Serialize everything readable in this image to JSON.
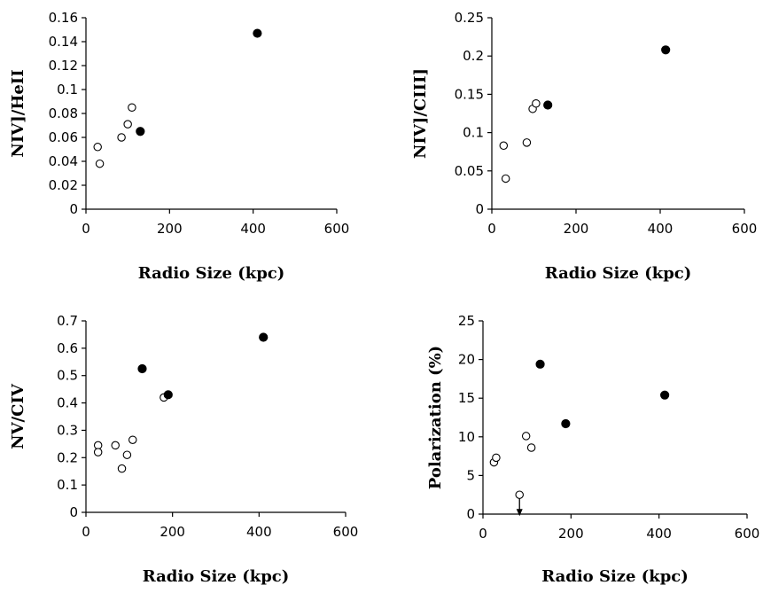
{
  "chart_data": [
    {
      "type": "scatter",
      "xlabel": "Radio Size (kpc)",
      "ylabel": "NIV]/HeII",
      "xlim": [
        0,
        600
      ],
      "ylim": [
        0,
        0.16
      ],
      "xticks": [
        "0",
        "200",
        "400",
        "600"
      ],
      "yticks": [
        "0",
        "0.02",
        "0.04",
        "0.06",
        "0.08",
        "0.1",
        "0.12",
        "0.14",
        "0.16"
      ],
      "grid": false,
      "series": [
        {
          "marker": "open",
          "x": [
            28,
            33,
            85,
            100,
            110
          ],
          "y": [
            0.052,
            0.038,
            0.06,
            0.071,
            0.085
          ]
        },
        {
          "marker": "filled",
          "x": [
            130,
            410
          ],
          "y": [
            0.065,
            0.147
          ]
        }
      ]
    },
    {
      "type": "scatter",
      "xlabel": "Radio Size (kpc)",
      "ylabel": "NIV]/CIII]",
      "xlim": [
        0,
        600
      ],
      "ylim": [
        0,
        0.25
      ],
      "xticks": [
        "0",
        "200",
        "400",
        "600"
      ],
      "yticks": [
        "0",
        "0.05",
        "0.1",
        "0.15",
        "0.2",
        "0.25"
      ],
      "grid": false,
      "series": [
        {
          "marker": "open",
          "x": [
            28,
            33,
            83,
            97,
            105
          ],
          "y": [
            0.083,
            0.04,
            0.087,
            0.131,
            0.138
          ]
        },
        {
          "marker": "filled",
          "x": [
            133,
            413
          ],
          "y": [
            0.136,
            0.208
          ]
        }
      ]
    },
    {
      "type": "scatter",
      "xlabel": "Radio Size (kpc)",
      "ylabel": "NV/CIV",
      "xlim": [
        0,
        600
      ],
      "ylim": [
        0,
        0.7
      ],
      "xticks": [
        "0",
        "200",
        "400",
        "600"
      ],
      "yticks": [
        "0",
        "0.1",
        "0.2",
        "0.3",
        "0.4",
        "0.5",
        "0.6",
        "0.7"
      ],
      "grid": false,
      "series": [
        {
          "marker": "open",
          "x": [
            28,
            28,
            68,
            83,
            95,
            108,
            180
          ],
          "y": [
            0.245,
            0.22,
            0.245,
            0.16,
            0.21,
            0.265,
            0.42
          ]
        },
        {
          "marker": "filled",
          "x": [
            130,
            190,
            410
          ],
          "y": [
            0.525,
            0.43,
            0.64
          ]
        }
      ]
    },
    {
      "type": "scatter",
      "xlabel": "Radio Size (kpc)",
      "ylabel": "Polarization (%)",
      "xlim": [
        0,
        600
      ],
      "ylim": [
        0,
        25
      ],
      "xticks": [
        "0",
        "200",
        "400",
        "600"
      ],
      "yticks": [
        "0",
        "5",
        "10",
        "15",
        "20",
        "25"
      ],
      "grid": false,
      "series": [
        {
          "marker": "open",
          "x": [
            25,
            30,
            83,
            98,
            110
          ],
          "y": [
            6.7,
            7.3,
            2.5,
            10.1,
            8.6
          ]
        },
        {
          "marker": "filled",
          "x": [
            130,
            188,
            413
          ],
          "y": [
            19.4,
            11.7,
            15.4
          ]
        }
      ],
      "annotations": [
        {
          "type": "upper-limit-arrow",
          "x": 83,
          "y": 2.5
        }
      ]
    }
  ]
}
